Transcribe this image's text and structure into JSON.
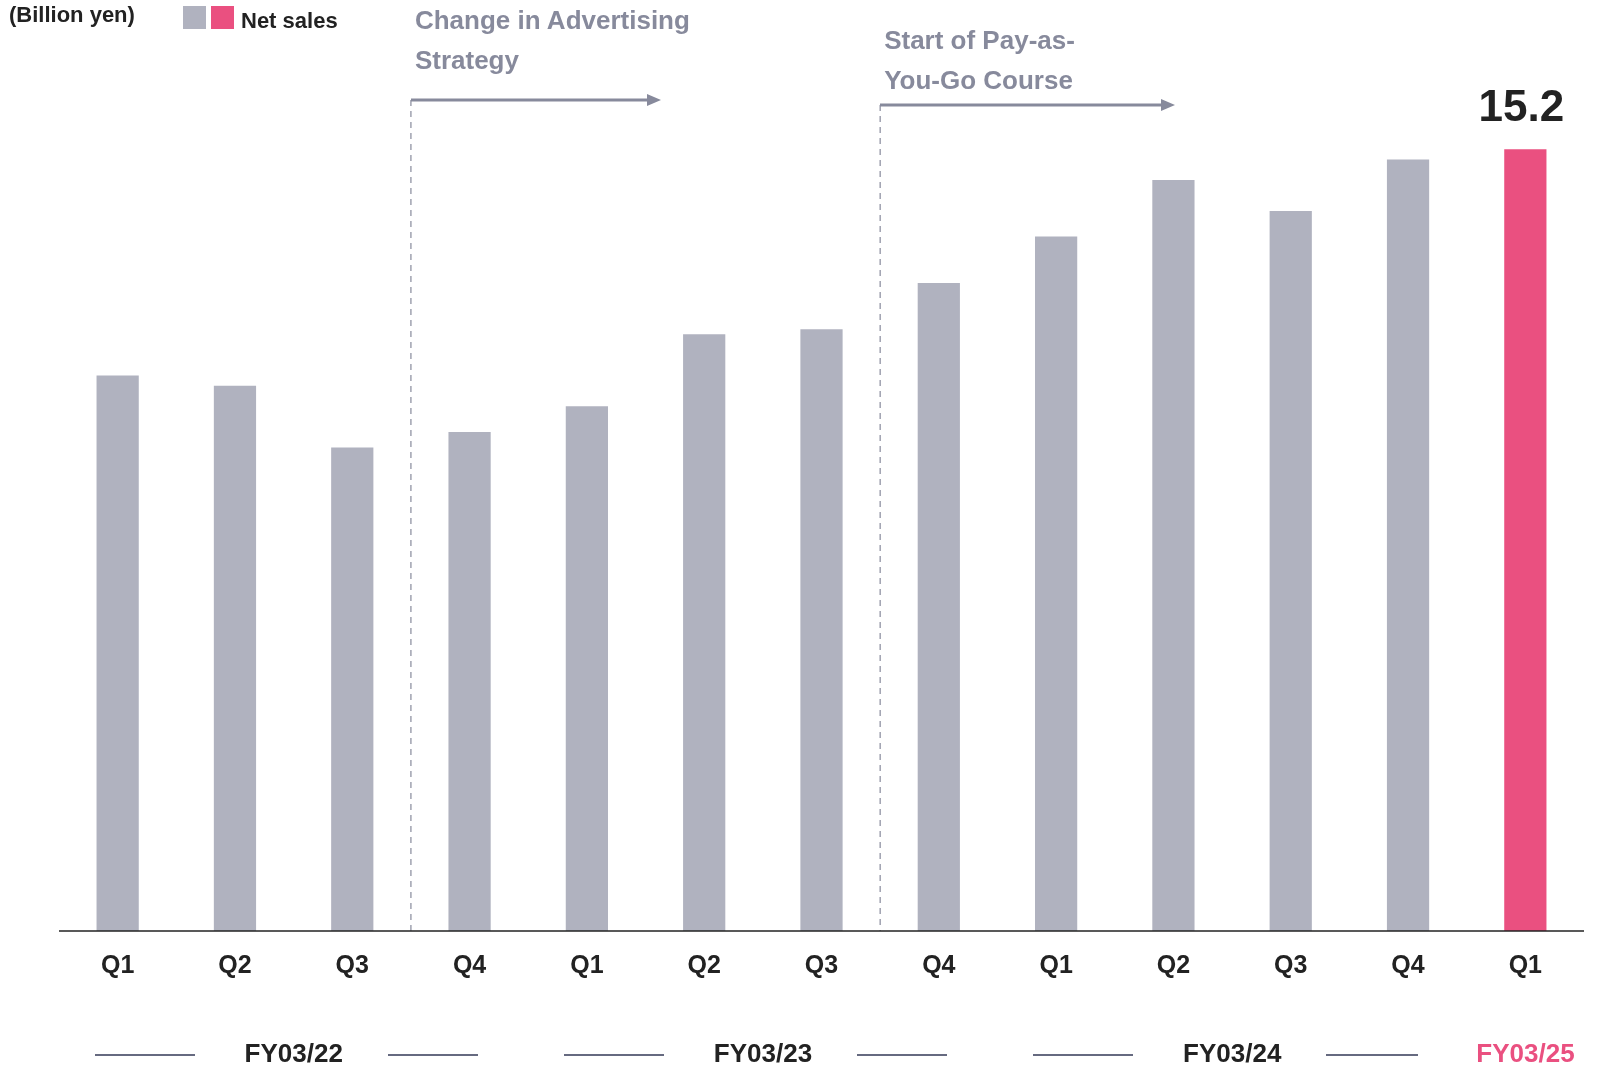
{
  "chart_data": {
    "type": "bar",
    "categories": [
      "Q1",
      "Q2",
      "Q3",
      "Q4",
      "Q1",
      "Q2",
      "Q3",
      "Q4",
      "Q1",
      "Q2",
      "Q3",
      "Q4",
      "Q1"
    ],
    "series": [
      {
        "name": "Net sales",
        "values": [
          10.8,
          10.6,
          9.4,
          9.7,
          10.2,
          11.6,
          11.7,
          12.6,
          13.5,
          14.6,
          14.0,
          15.0,
          15.2
        ],
        "colors": [
          "#b0b2bf",
          "#b0b2bf",
          "#b0b2bf",
          "#b0b2bf",
          "#b0b2bf",
          "#b0b2bf",
          "#b0b2bf",
          "#b0b2bf",
          "#b0b2bf",
          "#b0b2bf",
          "#b0b2bf",
          "#b0b2bf",
          "#ea5080"
        ],
        "value_labels": [
          null,
          null,
          null,
          null,
          null,
          null,
          null,
          null,
          null,
          null,
          null,
          null,
          "15.2"
        ]
      }
    ],
    "annotations": [
      "(Billion yen)",
      "Change in Advertising Strategy",
      "Start of Pay-as-You-Go Course",
      "FY03/22",
      "FY03/23",
      "FY03/24",
      "FY03/25"
    ],
    "legend": "top left",
    "grid": false
  }
}
